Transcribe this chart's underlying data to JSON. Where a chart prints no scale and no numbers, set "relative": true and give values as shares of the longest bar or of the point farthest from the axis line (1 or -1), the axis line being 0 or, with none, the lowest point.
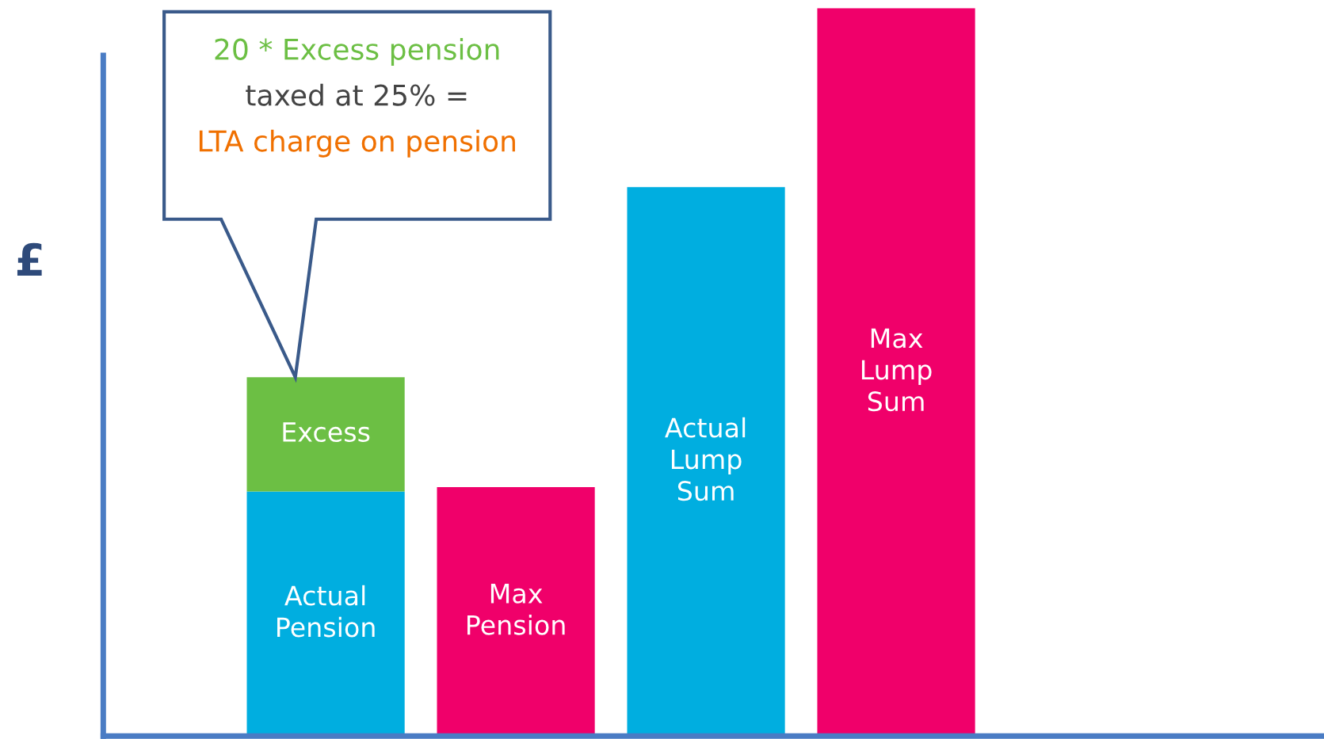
{
  "chart_data": {
    "type": "bar",
    "stacked": true,
    "relative": true,
    "ylabel": "£",
    "categories": [
      null,
      null,
      null,
      null
    ],
    "series": [
      {
        "name": "Actual Pension",
        "color": "#00aee0",
        "values": [
          0.336,
          null,
          null,
          null
        ]
      },
      {
        "name": "Excess",
        "color": "#6cbf44",
        "values": [
          0.157,
          null,
          null,
          null
        ]
      },
      {
        "name": "Max Pension",
        "color": "#f0006a",
        "values": [
          null,
          0.342,
          null,
          null
        ]
      },
      {
        "name": "Actual Lump Sum",
        "color": "#00aee0",
        "values": [
          null,
          null,
          0.754,
          null
        ]
      },
      {
        "name": "Max Lump Sum",
        "color": "#f0006a",
        "values": [
          null,
          null,
          null,
          1
        ]
      }
    ],
    "annotations": [
      "20 * Excess pension",
      "taxed at 25% =",
      "LTA charge on pension"
    ]
  }
}
